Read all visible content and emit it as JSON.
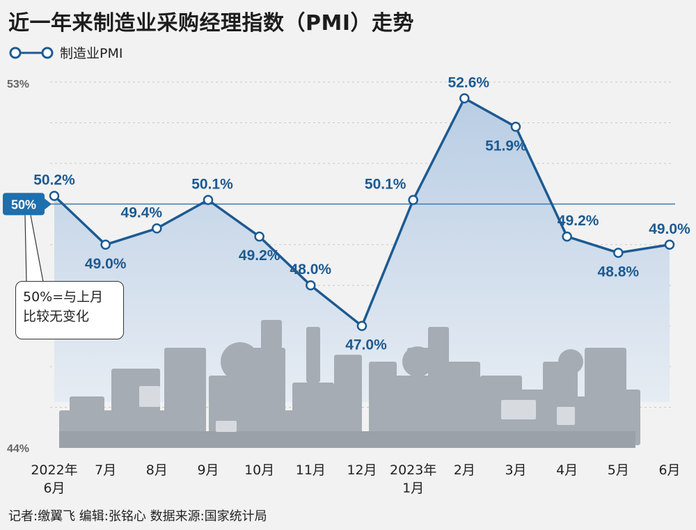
{
  "title": "近一年来制造业采购经理指数（PMI）走势",
  "legend": {
    "label": "制造业PMI"
  },
  "colors": {
    "line": "#1d5a91",
    "fill": "#c9d8ea",
    "badge": "#1d6fae",
    "grid": "#c8c8c8",
    "machine": "#a6acb3"
  },
  "chart_data": {
    "type": "line",
    "title": "近一年来制造业采购经理指数（PMI）走势",
    "xlabel": "",
    "ylabel": "",
    "ylim": [
      44,
      53
    ],
    "y_ticks": [
      "53%",
      "44%"
    ],
    "grid": true,
    "legend_position": "top-left",
    "categories": [
      [
        "2022年",
        "6月"
      ],
      [
        "7月"
      ],
      [
        "8月"
      ],
      [
        "9月"
      ],
      [
        "10月"
      ],
      [
        "11月"
      ],
      [
        "12月"
      ],
      [
        "2023年",
        "1月"
      ],
      [
        "2月"
      ],
      [
        "3月"
      ],
      [
        "4月"
      ],
      [
        "5月"
      ],
      [
        "6月"
      ]
    ],
    "series": [
      {
        "name": "制造业PMI",
        "values": [
          50.2,
          49.0,
          49.4,
          50.1,
          49.2,
          48.0,
          47.0,
          50.1,
          52.6,
          51.9,
          49.2,
          48.8,
          49.0
        ],
        "labels": [
          "50.2%",
          "49.0%",
          "49.4%",
          "50.1%",
          "49.2%",
          "48.0%",
          "47.0%",
          "50.1%",
          "52.6%",
          "51.9%",
          "49.2%",
          "48.8%",
          "49.0%"
        ]
      }
    ],
    "reference_line": {
      "value": 50,
      "label": "50%"
    },
    "annotation": "50%=与上月比较无变化"
  },
  "callout": {
    "line1": "50%=与上月",
    "line2": "比较无变化"
  },
  "footer": "记者:缴翼飞   编辑:张铭心   数据来源:国家统计局"
}
